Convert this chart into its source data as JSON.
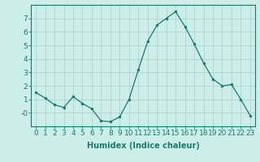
{
  "x": [
    0,
    1,
    2,
    3,
    4,
    5,
    6,
    7,
    8,
    9,
    10,
    11,
    12,
    13,
    14,
    15,
    16,
    17,
    18,
    19,
    20,
    21,
    22,
    23
  ],
  "y": [
    1.5,
    1.1,
    0.6,
    0.4,
    1.2,
    0.7,
    0.3,
    -0.6,
    -0.65,
    -0.3,
    1.0,
    3.2,
    5.3,
    6.5,
    7.0,
    7.5,
    6.4,
    5.1,
    3.7,
    2.5,
    2.0,
    2.1,
    1.0,
    -0.2
  ],
  "line_color": "#1a7a6e",
  "marker": "o",
  "marker_size": 2,
  "bg_color": "#cceee8",
  "grid_color": "#aacccc",
  "xlabel": "Humidex (Indice chaleur)",
  "ylim": [
    -1,
    8
  ],
  "xlim": [
    -0.5,
    23.5
  ],
  "yticks": [
    0,
    1,
    2,
    3,
    4,
    5,
    6,
    7
  ],
  "ytick_labels": [
    "-0",
    "1",
    "2",
    "3",
    "4",
    "5",
    "6",
    "7"
  ],
  "xticks": [
    0,
    1,
    2,
    3,
    4,
    5,
    6,
    7,
    8,
    9,
    10,
    11,
    12,
    13,
    14,
    15,
    16,
    17,
    18,
    19,
    20,
    21,
    22,
    23
  ],
  "label_fontsize": 7,
  "tick_fontsize": 6.5
}
